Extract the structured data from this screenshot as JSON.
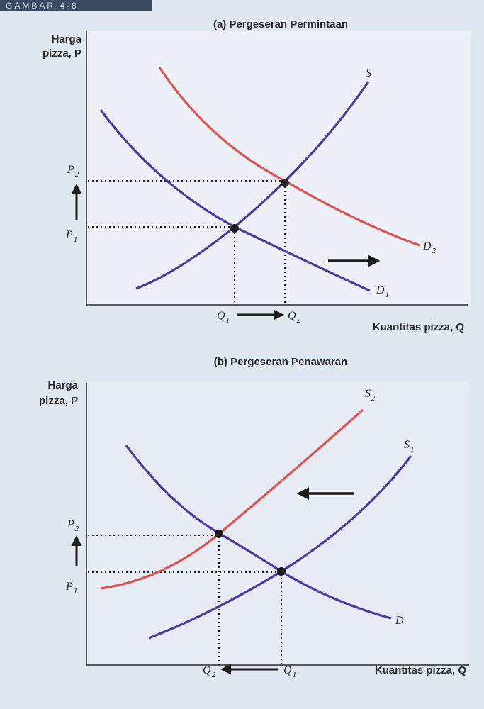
{
  "header": {
    "tab_text": "GAMBAR 4-8"
  },
  "chart_data": [
    {
      "type": "line",
      "title": "(a) Pergeseran Permintaan",
      "ylabel": [
        "Harga",
        "pizza, P"
      ],
      "xlabel": "Kuantitas pizza, Q",
      "grid": false,
      "series": [
        {
          "name": "S",
          "role": "supply",
          "color": "#4a3aa0"
        },
        {
          "name": "D1",
          "role": "demand-original",
          "color": "#4a3aa0"
        },
        {
          "name": "D2",
          "role": "demand-shifted",
          "color": "#d9534f"
        }
      ],
      "equilibria": [
        {
          "x_label": "Q1",
          "y_label": "P1"
        },
        {
          "x_label": "Q2",
          "y_label": "P2"
        }
      ],
      "shift_direction": "right",
      "annotations": [
        "P2",
        "P1",
        "Q1",
        "Q2",
        "S",
        "D1",
        "D2"
      ]
    },
    {
      "type": "line",
      "title": "(b) Pergeseran Penawaran",
      "ylabel": [
        "Harga",
        "pizza, P"
      ],
      "xlabel": "Kuantitas pizza, Q",
      "grid": false,
      "series": [
        {
          "name": "S1",
          "role": "supply-original",
          "color": "#4a3aa0"
        },
        {
          "name": "S2",
          "role": "supply-shifted",
          "color": "#d9534f"
        },
        {
          "name": "D",
          "role": "demand",
          "color": "#4a3aa0"
        }
      ],
      "equilibria": [
        {
          "x_label": "Q1",
          "y_label": "P1"
        },
        {
          "x_label": "Q2",
          "y_label": "P2"
        }
      ],
      "shift_direction": "left",
      "annotations": [
        "P2",
        "P1",
        "Q2",
        "Q1",
        "S2",
        "S1",
        "D"
      ]
    }
  ]
}
